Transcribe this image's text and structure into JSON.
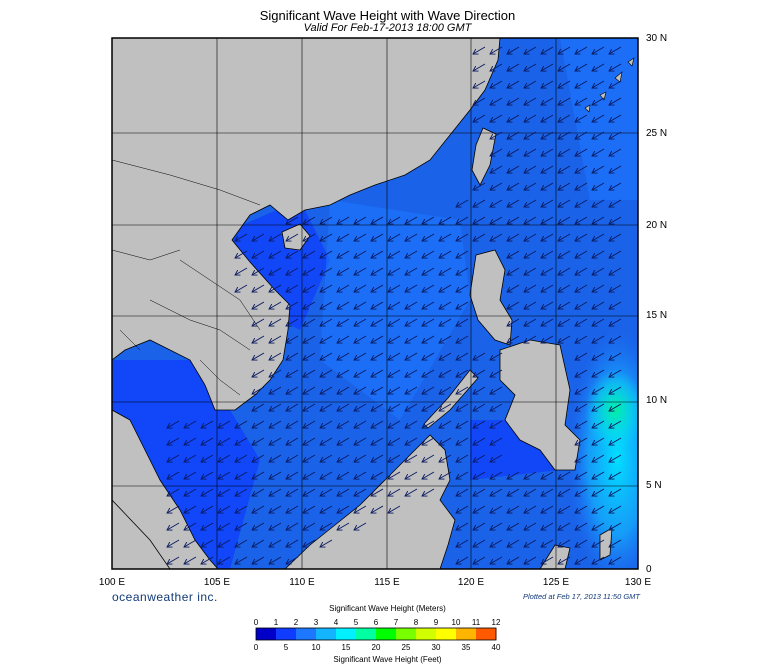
{
  "title": "Significant Wave Height with Wave Direction",
  "subtitle": "Valid For Feb-17-2013 18:00 GMT",
  "brand": "oceanweather inc.",
  "plotted": "Plotted at Feb 17, 2013 11:50 GMT",
  "map": {
    "lon_labels": [
      "100 E",
      "105 E",
      "110 E",
      "115 E",
      "120 E",
      "125 E",
      "130 E"
    ],
    "lat_labels": [
      "30 N",
      "25 N",
      "20 N",
      "15 N",
      "10 N",
      "5 N",
      "0"
    ],
    "land_color": "#c0c0c0",
    "sea_color": "#1a63e8",
    "arrow_direction": "toward southwest"
  },
  "colorbar": {
    "title_top": "Significant Wave Height (Meters)",
    "title_bottom": "Significant Wave Height (Feet)",
    "meters": [
      "0",
      "1",
      "2",
      "3",
      "4",
      "5",
      "6",
      "7",
      "8",
      "9",
      "10",
      "11",
      "12"
    ],
    "feet": [
      "0",
      "5",
      "10",
      "15",
      "20",
      "25",
      "30",
      "35",
      "40"
    ],
    "colors": [
      "#0000c8",
      "#0f3cff",
      "#1e78ff",
      "#14b4ff",
      "#00f0ff",
      "#00ffa0",
      "#00ff00",
      "#78ff00",
      "#d2ff00",
      "#ffff00",
      "#ffb400",
      "#ff5a00"
    ]
  }
}
